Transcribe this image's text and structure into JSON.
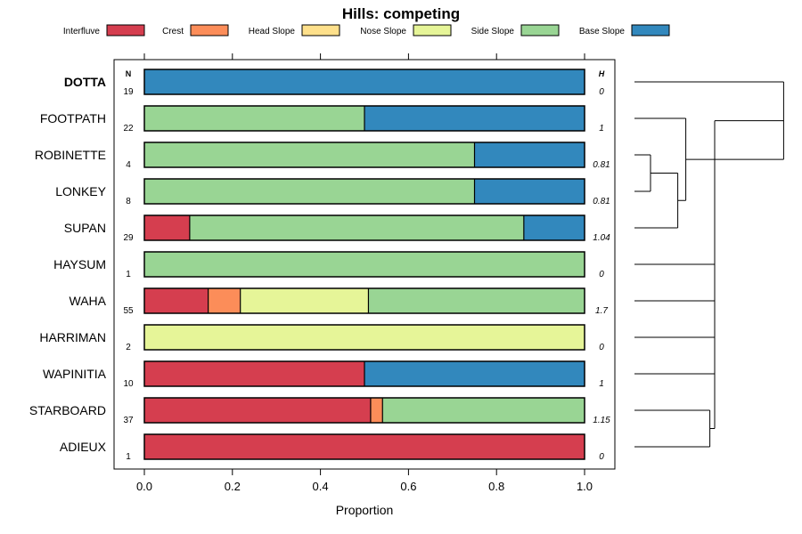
{
  "chart_data": {
    "type": "bar",
    "orientation": "horizontal",
    "stacked": true,
    "title": "Hills: competing",
    "xlabel": "Proportion",
    "ylabel": "",
    "xlim": [
      0,
      1
    ],
    "x_ticks": [
      "0.0",
      "0.2",
      "0.4",
      "0.6",
      "0.8",
      "1.0"
    ],
    "n_header": "N",
    "h_header": "H",
    "legend": [
      {
        "name": "Interfluve",
        "color": "#D53E4F"
      },
      {
        "name": "Crest",
        "color": "#FC8D59"
      },
      {
        "name": "Head Slope",
        "color": "#FEE08B"
      },
      {
        "name": "Nose Slope",
        "color": "#E6F598"
      },
      {
        "name": "Side Slope",
        "color": "#99D594"
      },
      {
        "name": "Base Slope",
        "color": "#3288BD"
      }
    ],
    "categories": [
      {
        "label": "DOTTA",
        "bold": true,
        "n": "19",
        "h": "0",
        "values": {
          "Interfluve": 0,
          "Crest": 0,
          "Head Slope": 0,
          "Nose Slope": 0,
          "Side Slope": 0,
          "Base Slope": 1.0
        }
      },
      {
        "label": "FOOTPATH",
        "bold": false,
        "n": "22",
        "h": "1",
        "values": {
          "Interfluve": 0,
          "Crest": 0,
          "Head Slope": 0,
          "Nose Slope": 0,
          "Side Slope": 0.5,
          "Base Slope": 0.5
        }
      },
      {
        "label": "ROBINETTE",
        "bold": false,
        "n": "4",
        "h": "0.81",
        "values": {
          "Interfluve": 0,
          "Crest": 0,
          "Head Slope": 0,
          "Nose Slope": 0,
          "Side Slope": 0.75,
          "Base Slope": 0.25
        }
      },
      {
        "label": "LONKEY",
        "bold": false,
        "n": "8",
        "h": "0.81",
        "values": {
          "Interfluve": 0,
          "Crest": 0,
          "Head Slope": 0,
          "Nose Slope": 0,
          "Side Slope": 0.75,
          "Base Slope": 0.25
        }
      },
      {
        "label": "SUPAN",
        "bold": false,
        "n": "29",
        "h": "1.04",
        "values": {
          "Interfluve": 0.103,
          "Crest": 0,
          "Head Slope": 0,
          "Nose Slope": 0,
          "Side Slope": 0.759,
          "Base Slope": 0.138
        }
      },
      {
        "label": "HAYSUM",
        "bold": false,
        "n": "1",
        "h": "0",
        "values": {
          "Interfluve": 0,
          "Crest": 0,
          "Head Slope": 0,
          "Nose Slope": 0,
          "Side Slope": 1.0,
          "Base Slope": 0
        }
      },
      {
        "label": "WAHA",
        "bold": false,
        "n": "55",
        "h": "1.7",
        "values": {
          "Interfluve": 0.145,
          "Crest": 0.073,
          "Head Slope": 0,
          "Nose Slope": 0.291,
          "Side Slope": 0.491,
          "Base Slope": 0
        }
      },
      {
        "label": "HARRIMAN",
        "bold": false,
        "n": "2",
        "h": "0",
        "values": {
          "Interfluve": 0,
          "Crest": 0,
          "Head Slope": 0,
          "Nose Slope": 1.0,
          "Side Slope": 0,
          "Base Slope": 0
        }
      },
      {
        "label": "WAPINITIA",
        "bold": false,
        "n": "10",
        "h": "1",
        "values": {
          "Interfluve": 0.5,
          "Crest": 0,
          "Head Slope": 0,
          "Nose Slope": 0,
          "Side Slope": 0,
          "Base Slope": 0.5
        }
      },
      {
        "label": "STARBOARD",
        "bold": false,
        "n": "37",
        "h": "1.15",
        "values": {
          "Interfluve": 0.514,
          "Crest": 0.027,
          "Head Slope": 0,
          "Nose Slope": 0,
          "Side Slope": 0.459,
          "Base Slope": 0
        }
      },
      {
        "label": "ADIEUX",
        "bold": false,
        "n": "1",
        "h": "0",
        "values": {
          "Interfluve": 1.0,
          "Crest": 0,
          "Head Slope": 0,
          "Nose Slope": 0,
          "Side Slope": 0,
          "Base Slope": 0
        }
      }
    ],
    "dendrogram": {
      "leaf_order": [
        "DOTTA",
        "FOOTPATH",
        "ROBINETTE",
        "LONKEY",
        "SUPAN",
        "HAYSUM",
        "WAHA",
        "HARRIMAN",
        "WAPINITIA",
        "STARBOARD",
        "ADIEUX"
      ],
      "merges": [
        {
          "left": "ROBINETTE",
          "right": "LONKEY",
          "height": 0.1
        },
        {
          "left": "c1",
          "right": "SUPAN",
          "height": 0.27
        },
        {
          "left": "STARBOARD",
          "right": "ADIEUX",
          "height": 0.47
        },
        {
          "left": "FOOTPATH",
          "right": "c2",
          "height": 0.32
        },
        {
          "left": "WAPINITIA",
          "right": "c3",
          "height": 0.5
        },
        {
          "left": "DOTTA",
          "right": "c4",
          "height": 0.93
        },
        {
          "left": "HAYSUM",
          "right": "WAHA",
          "height": 0.5
        },
        {
          "left": "c5",
          "right": "c7",
          "height": 0.5
        },
        {
          "left": "c8",
          "right": "HARRIMAN",
          "height": 0.5
        },
        {
          "left": "c9",
          "right": "c6",
          "height": 0.5
        }
      ]
    }
  }
}
